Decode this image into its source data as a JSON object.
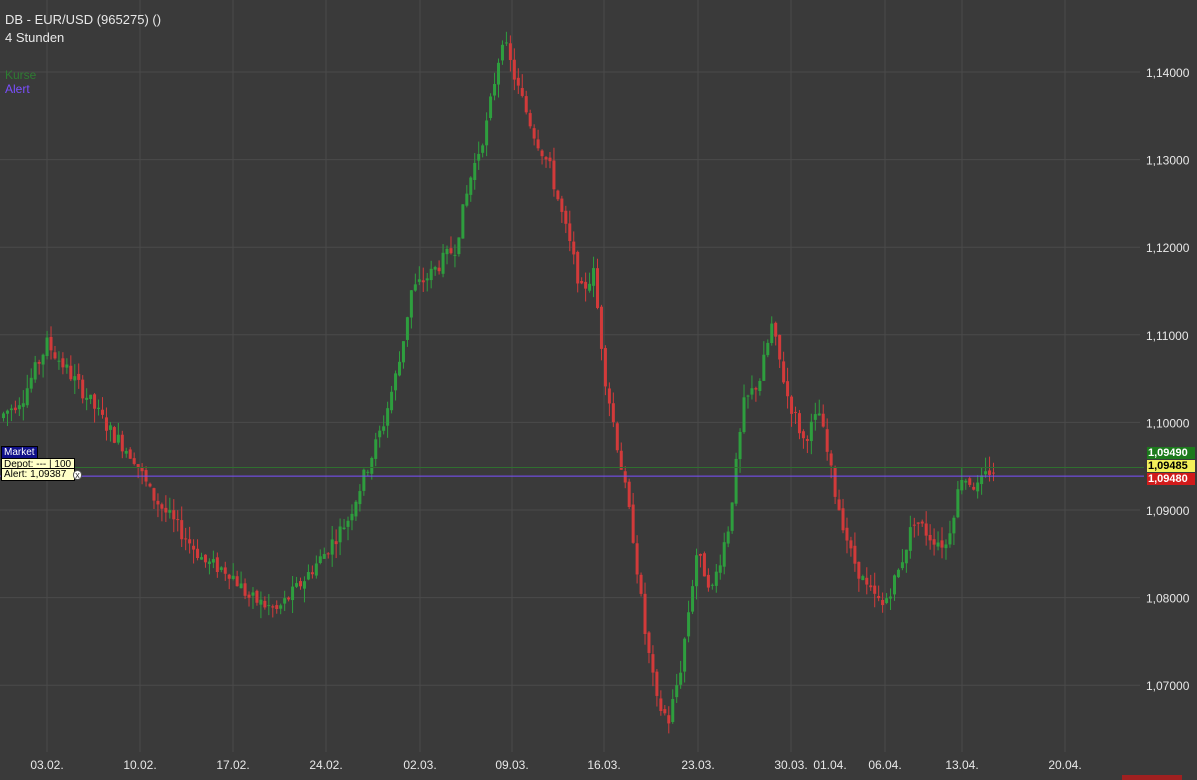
{
  "header": {
    "title": "DB - EUR/USD (965275) ()",
    "interval": "4 Stunden"
  },
  "legend": [
    {
      "label": "Kurse",
      "color": "#2e7d32"
    },
    {
      "label": "Alert",
      "color": "#7b4fff"
    }
  ],
  "overlay_boxes": {
    "market": "Market",
    "depot": "Depot: --- | 100",
    "alert": "Alert: 1,09387"
  },
  "price_tags": {
    "ask": "1,09490",
    "last": "1,09485",
    "bid": "1,09480"
  },
  "colors": {
    "background": "#3a3a3a",
    "grid": "#4a4a4a",
    "up": "#2e9e3e",
    "down": "#d23a3a",
    "alert_line": "#7b4fff",
    "ask_tag": "#1c7a1c",
    "last_tag": "#f3f05a",
    "bid_tag": "#d11b1b"
  },
  "chart_data": {
    "type": "candlestick",
    "ylim": [
      1.0625,
      1.1485
    ],
    "y_ticks": [
      1.07,
      1.08,
      1.09,
      1.1,
      1.11,
      1.12,
      1.13,
      1.14
    ],
    "y_tick_labels": [
      "1,07000",
      "1,08000",
      "1,09000",
      "1,10000",
      "1,11000",
      "1,12000",
      "1,13000",
      "1,14000"
    ],
    "x_tick_labels": [
      "03.02.",
      "10.02.",
      "17.02.",
      "24.02.",
      "02.03.",
      "09.03.",
      "16.03.",
      "23.03.",
      "30.03.",
      "01.04.",
      "06.04.",
      "13.04.",
      "20.04."
    ],
    "alert_level": 1.09387,
    "last_price": 1.09485,
    "grid": true,
    "price_path": [
      [
        0,
        1.1005
      ],
      [
        6,
        1.103
      ],
      [
        10,
        1.107
      ],
      [
        12,
        1.109
      ],
      [
        17,
        1.106
      ],
      [
        22,
        1.103
      ],
      [
        28,
        1.099
      ],
      [
        34,
        1.096
      ],
      [
        38,
        1.092
      ],
      [
        45,
        1.088
      ],
      [
        52,
        1.084
      ],
      [
        58,
        1.083
      ],
      [
        63,
        1.08
      ],
      [
        70,
        1.0785
      ],
      [
        75,
        1.081
      ],
      [
        82,
        1.085
      ],
      [
        88,
        1.089
      ],
      [
        93,
        1.095
      ],
      [
        97,
        1.1
      ],
      [
        101,
        1.107
      ],
      [
        104,
        1.115
      ],
      [
        109,
        1.117
      ],
      [
        115,
        1.12
      ],
      [
        119,
        1.128
      ],
      [
        123,
        1.134
      ],
      [
        127,
        1.144
      ],
      [
        131,
        1.138
      ],
      [
        135,
        1.133
      ],
      [
        139,
        1.129
      ],
      [
        143,
        1.122
      ],
      [
        147,
        1.115
      ],
      [
        150,
        1.117
      ],
      [
        153,
        1.105
      ],
      [
        157,
        1.095
      ],
      [
        160,
        1.087
      ],
      [
        163,
        1.076
      ],
      [
        166,
        1.068
      ],
      [
        169,
        1.066
      ],
      [
        172,
        1.072
      ],
      [
        176,
        1.085
      ],
      [
        180,
        1.081
      ],
      [
        184,
        1.088
      ],
      [
        188,
        1.102
      ],
      [
        192,
        1.105
      ],
      [
        195,
        1.111
      ],
      [
        199,
        1.103
      ],
      [
        203,
        1.098
      ],
      [
        207,
        1.101
      ],
      [
        211,
        1.092
      ],
      [
        215,
        1.085
      ],
      [
        219,
        1.081
      ],
      [
        223,
        1.079
      ],
      [
        227,
        1.083
      ],
      [
        231,
        1.089
      ],
      [
        235,
        1.087
      ],
      [
        239,
        1.086
      ],
      [
        243,
        1.094
      ],
      [
        247,
        1.0925
      ],
      [
        250,
        1.0945
      ]
    ]
  }
}
